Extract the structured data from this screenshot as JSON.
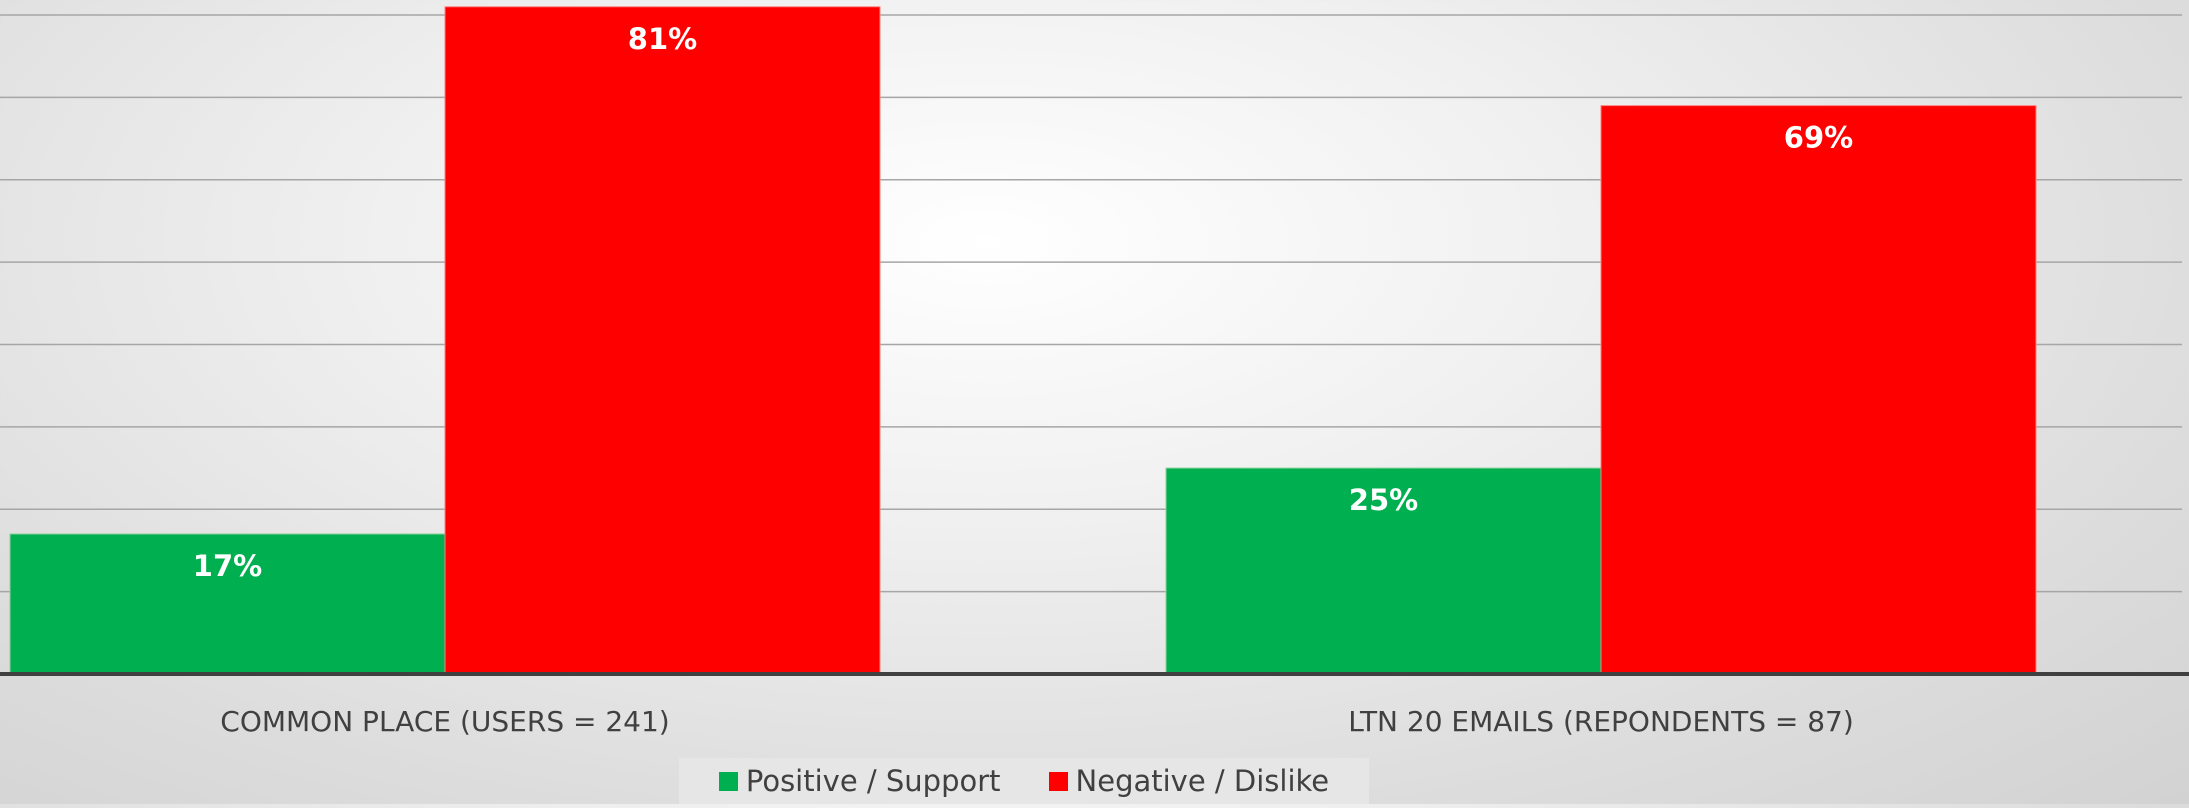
{
  "chart_data": {
    "type": "bar",
    "categories": [
      "COMMON PLACE (USERS = 241)",
      "LTN 20 EMAILS (REPONDENTS = 87)"
    ],
    "series": [
      {
        "name": "Positive / Support",
        "values": [
          17,
          25
        ],
        "labels": [
          "17%",
          "25%"
        ],
        "color": "#00b050"
      },
      {
        "name": "Negative / Dislike",
        "values": [
          81,
          69
        ],
        "labels": [
          "81%",
          "69%"
        ],
        "color": "#ff0000"
      }
    ],
    "ylim": [
      0,
      80
    ],
    "y_gridlines": [
      10,
      20,
      30,
      40,
      50,
      60,
      70,
      80
    ],
    "grid": true,
    "legend_position": "bottom",
    "title": "",
    "xlabel": "",
    "ylabel": ""
  }
}
